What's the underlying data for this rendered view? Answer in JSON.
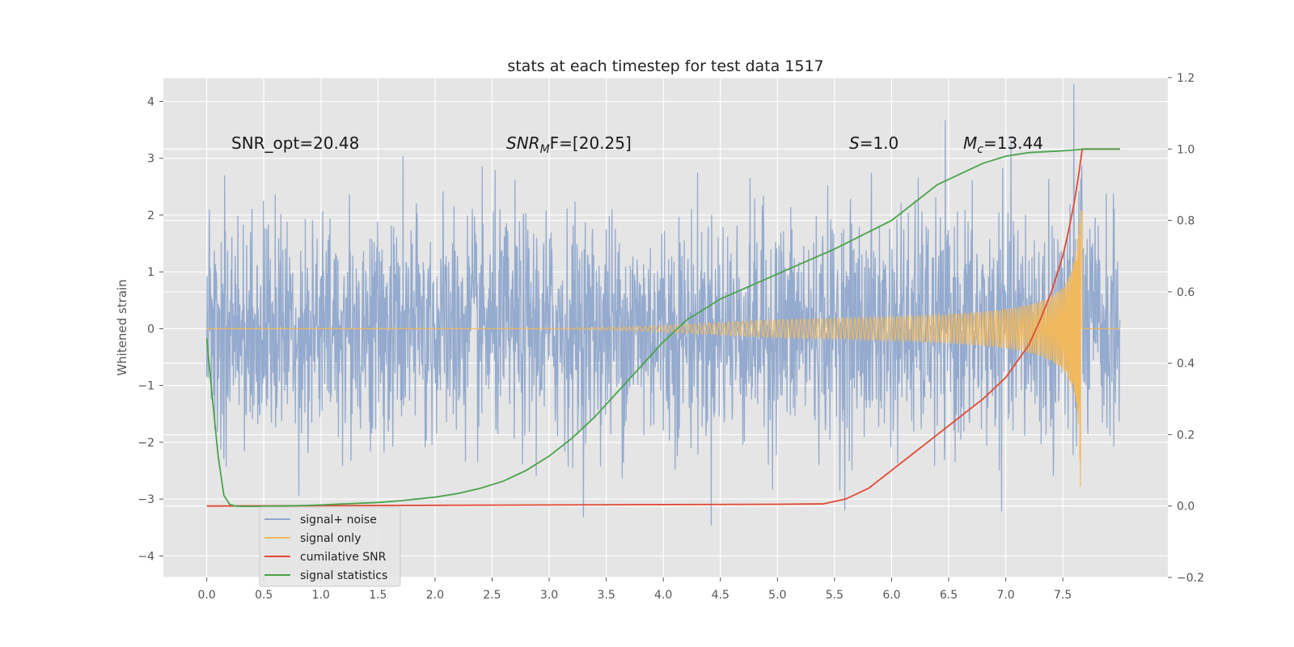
{
  "chart_data": {
    "type": "line",
    "title": "stats at each timestep for test data 1517",
    "xlabel": "",
    "ylabel": "Whitened strain",
    "y2label": "",
    "xlim": [
      -0.38,
      8.42
    ],
    "ylim": [
      -4.38,
      4.42
    ],
    "y2lim": [
      -0.2,
      1.2
    ],
    "xticks": [
      "0.0",
      "0.5",
      "1.0",
      "1.5",
      "2.0",
      "2.5",
      "3.0",
      "3.5",
      "4.0",
      "4.5",
      "5.0",
      "5.5",
      "6.0",
      "6.5",
      "7.0",
      "7.5"
    ],
    "yticks": [
      "4",
      "3",
      "2",
      "1",
      "0",
      "−1",
      "−2",
      "−3",
      "−4"
    ],
    "y2ticks": [
      "1.2",
      "1.0",
      "0.8",
      "0.6",
      "0.4",
      "0.2",
      "0.0",
      "−0.2"
    ],
    "grid": true,
    "legend_position": "lower-left",
    "annotations": [
      {
        "prefix": "SNR_opt=20.48",
        "sub": "",
        "suffix": ""
      },
      {
        "prefix": "SNR",
        "sub": "M",
        "suffix": "F=[20.25]"
      },
      {
        "prefix": "S",
        "sub": "",
        "suffix": "=1.0"
      },
      {
        "prefix": "M",
        "sub": "c",
        "suffix": "=13.44"
      }
    ],
    "series": [
      {
        "name": "signal+ noise",
        "color": "#8fa7cc",
        "axis": "left",
        "kind": "noise",
        "x_range": [
          0,
          8.0
        ],
        "amplitude": 1.0
      },
      {
        "name": "signal only",
        "color": "#f0b95e",
        "axis": "left",
        "kind": "chirp",
        "x_range": [
          0,
          7.67
        ],
        "merger_x": 7.67,
        "peak_amplitude": 3.1
      },
      {
        "name": "cumilative SNR",
        "color": "#e24a33",
        "axis": "right",
        "x": [
          0,
          1,
          2,
          3,
          4,
          5,
          5.4,
          5.6,
          5.8,
          6.0,
          6.2,
          6.4,
          6.6,
          6.8,
          7.0,
          7.2,
          7.3,
          7.4,
          7.5,
          7.55,
          7.6,
          7.64,
          7.67,
          8.0
        ],
        "y": [
          0,
          0.001,
          0.002,
          0.003,
          0.004,
          0.005,
          0.006,
          0.02,
          0.05,
          0.1,
          0.15,
          0.2,
          0.25,
          0.3,
          0.36,
          0.45,
          0.52,
          0.6,
          0.7,
          0.77,
          0.85,
          0.93,
          1.0,
          1.0
        ]
      },
      {
        "name": "signal statistics",
        "color": "#4aa34a",
        "axis": "right",
        "x": [
          0,
          0.05,
          0.1,
          0.15,
          0.2,
          0.25,
          0.3,
          0.4,
          0.6,
          0.8,
          1.0,
          1.2,
          1.5,
          1.7,
          2.0,
          2.2,
          2.4,
          2.6,
          2.8,
          3.0,
          3.2,
          3.4,
          3.6,
          3.8,
          4.0,
          4.2,
          4.5,
          5.0,
          5.5,
          6.0,
          6.2,
          6.4,
          6.6,
          6.8,
          7.0,
          7.2,
          7.5,
          7.7,
          8.0
        ],
        "y": [
          0.47,
          0.3,
          0.14,
          0.03,
          0.005,
          0.0,
          -0.001,
          -0.001,
          0.0,
          0.001,
          0.003,
          0.006,
          0.01,
          0.015,
          0.025,
          0.035,
          0.05,
          0.07,
          0.1,
          0.14,
          0.19,
          0.25,
          0.32,
          0.39,
          0.46,
          0.52,
          0.58,
          0.65,
          0.72,
          0.8,
          0.85,
          0.9,
          0.93,
          0.96,
          0.98,
          0.99,
          0.995,
          1.0,
          1.0
        ]
      }
    ]
  }
}
